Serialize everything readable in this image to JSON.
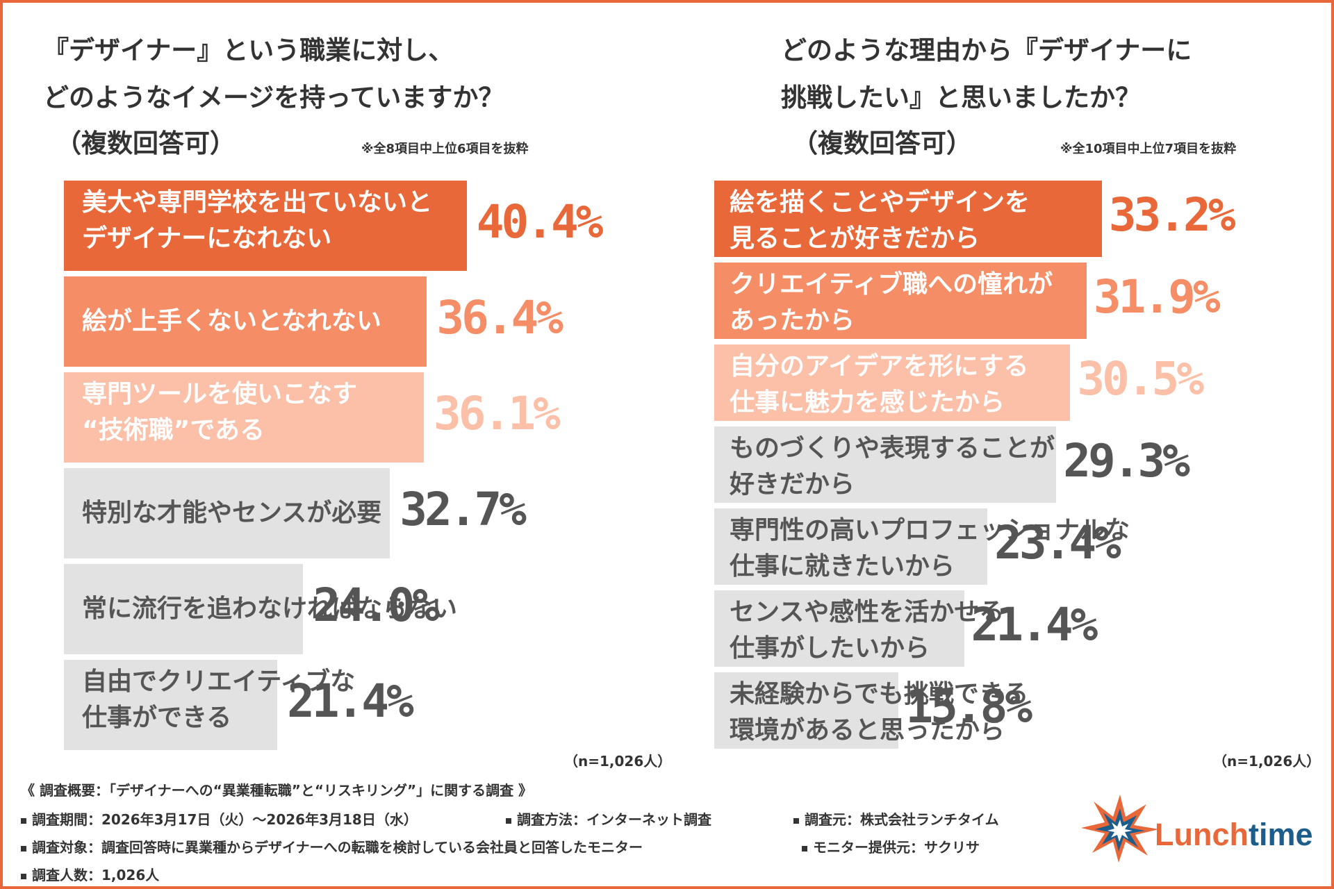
{
  "colors": {
    "frame": "#e8683a",
    "bar_dark": "#e8683a",
    "bar_mid": "#f58d66",
    "bar_light": "#fcbfa7",
    "bar_grey": "#e2e2e2",
    "text_dark": "#555555",
    "logo_orange": "#e8683a",
    "logo_blue": "#1c5d8c"
  },
  "left": {
    "title_lines": [
      "『デザイナー』という職業に対し、",
      "どのようなイメージを持っていますか？",
      "（複数回答可）"
    ],
    "note": "※全8項目中上位6項目を抜粋",
    "n_note": "（n=1,026人）"
  },
  "right": {
    "title_lines": [
      "どのような理由から『デザイナーに",
      "挑戦したい』と思いましたか？",
      "（複数回答可）"
    ],
    "note": "※全10項目中上位7項目を抜粋",
    "n_note": "（n=1,026人）"
  },
  "chart_data": [
    {
      "type": "bar",
      "orientation": "horizontal",
      "categories": [
        "美大や専門学校を出ていないと\nデザイナーになれない",
        "絵が上手くないとなれない",
        "専門ツールを使いこなす\n“技術職”である",
        "特別な才能やセンスが必要",
        "常に流行を追わなければならない",
        "自由でクリエイティブな\n仕事ができる"
      ],
      "values": [
        40.4,
        36.4,
        36.1,
        32.7,
        24.0,
        21.4
      ],
      "value_labels": [
        "40.4%",
        "36.4%",
        "36.1%",
        "32.7%",
        "24.0%",
        "21.4%"
      ],
      "bar_colors": [
        "#e8683a",
        "#f58d66",
        "#fcbfa7",
        "#e2e2e2",
        "#e2e2e2",
        "#e2e2e2"
      ],
      "label_colors": [
        "#ffffff",
        "#ffffff",
        "#ffffff",
        "#555555",
        "#555555",
        "#555555"
      ],
      "value_colors": [
        "#e8683a",
        "#f58d66",
        "#fcbfa7",
        "#555555",
        "#555555",
        "#555555"
      ],
      "unit": "%"
    },
    {
      "type": "bar",
      "orientation": "horizontal",
      "categories": [
        "絵を描くことやデザインを\n見ることが好きだから",
        "クリエイティブ職への憧れが\nあったから",
        "自分のアイデアを形にする\n仕事に魅力を感じたから",
        "ものづくりや表現することが\n好きだから",
        "専門性の高いプロフェッショナルな\n仕事に就きたいから",
        "センスや感性を活かせる\n仕事がしたいから",
        "未経験からでも挑戦できる\n環境があると思ったから"
      ],
      "values": [
        33.2,
        31.9,
        30.5,
        29.3,
        23.4,
        21.4,
        15.8
      ],
      "value_labels": [
        "33.2%",
        "31.9%",
        "30.5%",
        "29.3%",
        "23.4%",
        "21.4%",
        "15.8%"
      ],
      "bar_colors": [
        "#e8683a",
        "#f58d66",
        "#fcbfa7",
        "#e2e2e2",
        "#e2e2e2",
        "#e2e2e2",
        "#e2e2e2"
      ],
      "label_colors": [
        "#ffffff",
        "#ffffff",
        "#ffffff",
        "#555555",
        "#555555",
        "#555555",
        "#555555"
      ],
      "value_colors": [
        "#e8683a",
        "#f58d66",
        "#fcbfa7",
        "#555555",
        "#555555",
        "#555555",
        "#555555"
      ],
      "unit": "%"
    }
  ],
  "footer": {
    "heading": "《 調査概要：「デザイナーへの“異業種転職”と“リスキリング”」に関する調査 》",
    "period": "調査期間：2026年3月17日（火）～2026年3月18日（水）",
    "method": "調査方法：インターネット調査",
    "source": "調査元：株式会社ランチタイム",
    "target": "調査対象：調査回答時に異業種からデザイナーへの転職を検討している会社員と回答したモニター",
    "provider": "モニター提供元：サクリサ",
    "count": "調査人数：1,026人"
  },
  "logo": {
    "text_part1": "Lunch",
    "text_part2": "time"
  }
}
